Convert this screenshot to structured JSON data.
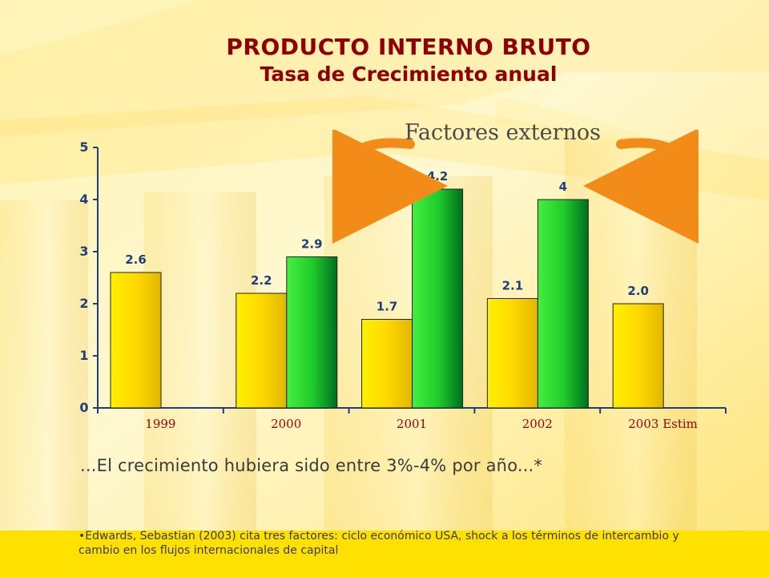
{
  "page": {
    "title": "PRODUCTO INTERNO BRUTO",
    "subtitle": "Tasa de Crecimiento anual",
    "annotation": "Factores externos",
    "statement": "...El crecimiento hubiera sido entre 3%-4% por año...*",
    "footnote": "•Edwards, Sebastian (2003) cita tres factores: ciclo económico USA, shock a los términos de intercambio y cambio en los flujos internacionales  de capital"
  },
  "colors": {
    "title": "#8f0000",
    "yellow_bar": "#ffd300",
    "green_bar": "#12c21d",
    "label": "#1f3f7a",
    "axis": "#1f3f7a",
    "arrow": "#f28b18"
  },
  "chart_data": {
    "type": "bar",
    "categories": [
      "1999",
      "2000",
      "2001",
      "2002",
      "2003 Estim"
    ],
    "ylim": [
      0,
      5
    ],
    "y_ticks": [
      "0",
      "1",
      "2",
      "3",
      "4",
      "5"
    ],
    "series": [
      {
        "values": [
          2.6,
          2.2,
          1.7,
          2.1,
          2.0
        ],
        "labels": [
          "2.6",
          "2.2",
          "1.7",
          "2.1",
          "2.0"
        ],
        "color": "#ffd300"
      },
      {
        "values": [
          null,
          2.9,
          4.2,
          4.0,
          null
        ],
        "labels": [
          "",
          "2.9",
          "4.2",
          "4",
          ""
        ],
        "color": "#12c21d"
      }
    ],
    "grid": false,
    "legend": "none",
    "xlabel": "",
    "ylabel": ""
  },
  "icons": {
    "left_arrow": "curved-arrow-icon",
    "right_arrow": "curved-arrow-icon"
  }
}
